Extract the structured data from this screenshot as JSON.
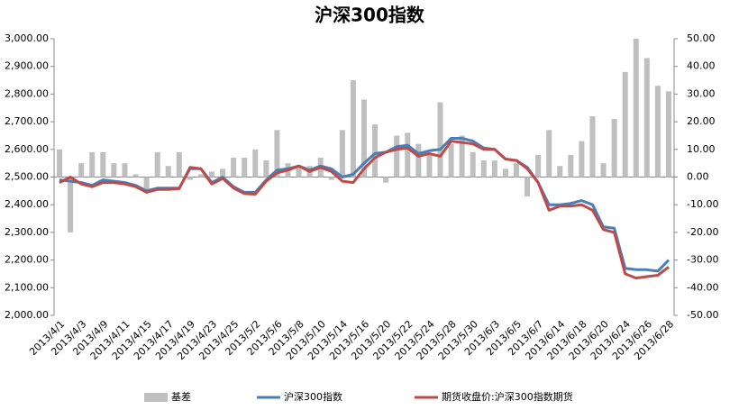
{
  "chart_data": {
    "type": "combo",
    "title": "沪深300指数",
    "categories": [
      "2013/4/1",
      null,
      "2013/4/3",
      null,
      "2013/4/9",
      null,
      "2013/4/11",
      null,
      "2013/4/15",
      null,
      "2013/4/17",
      null,
      "2013/4/19",
      null,
      "2013/4/23",
      null,
      "2013/4/25",
      null,
      "2013/5/2",
      null,
      "2013/5/6",
      null,
      "2013/5/8",
      null,
      "2013/5/10",
      null,
      "2013/5/14",
      null,
      "2013/5/16",
      null,
      "2013/5/20",
      null,
      "2013/5/22",
      null,
      "2013/5/24",
      null,
      "2013/5/28",
      null,
      "2013/5/30",
      null,
      "2013/6/3",
      null,
      "2013/6/5",
      null,
      "2013/6/7",
      null,
      "2013/6/14",
      null,
      "2013/6/18",
      null,
      "2013/6/20",
      null,
      "2013/6/24",
      null,
      "2013/6/26",
      null,
      "2013/6/28"
    ],
    "series": [
      {
        "name": "基差",
        "type": "bar",
        "axis": "y2",
        "color": "#bfbfbf",
        "values": [
          10,
          -20,
          5,
          9,
          9,
          5,
          5,
          1,
          -5,
          9,
          4,
          9,
          -1,
          1,
          2,
          3,
          7,
          7,
          10,
          6,
          17,
          5,
          4,
          4,
          7,
          -1,
          17,
          35,
          28,
          19,
          -2,
          15,
          16,
          12,
          8,
          27,
          12,
          15,
          9,
          6,
          6,
          3,
          5,
          -7,
          8,
          17,
          4,
          8,
          13,
          22,
          5,
          21,
          38,
          50,
          43,
          33,
          31
        ]
      },
      {
        "name": "沪深300指数",
        "type": "line",
        "color": "#4a7ebb",
        "values": [
          2490,
          2485,
          2480,
          2470,
          2490,
          2485,
          2480,
          2470,
          2450,
          2460,
          2460,
          2460,
          2530,
          2530,
          2480,
          2500,
          2465,
          2445,
          2445,
          2490,
          2525,
          2530,
          2540,
          2525,
          2540,
          2530,
          2500,
          2510,
          2550,
          2585,
          2590,
          2610,
          2615,
          2585,
          2595,
          2600,
          2640,
          2640,
          2630,
          2605,
          2600,
          2565,
          2560,
          2535,
          2480,
          2400,
          2400,
          2405,
          2415,
          2400,
          2320,
          2315,
          2170,
          2165,
          2165,
          2160,
          2200
        ]
      },
      {
        "name": "期货收盘价:沪深300指数期货",
        "type": "line",
        "color": "#be4b48",
        "values": [
          2480,
          2500,
          2475,
          2465,
          2480,
          2480,
          2475,
          2465,
          2445,
          2455,
          2455,
          2458,
          2535,
          2530,
          2475,
          2495,
          2460,
          2440,
          2438,
          2485,
          2515,
          2525,
          2540,
          2520,
          2535,
          2520,
          2485,
          2480,
          2530,
          2570,
          2590,
          2600,
          2605,
          2575,
          2585,
          2575,
          2630,
          2625,
          2620,
          2600,
          2600,
          2565,
          2560,
          2530,
          2480,
          2380,
          2395,
          2395,
          2400,
          2380,
          2310,
          2300,
          2150,
          2135,
          2140,
          2145,
          2175
        ]
      }
    ],
    "ylim": [
      2000,
      3000
    ],
    "yticks": [
      {
        "value": 2000,
        "label": "2,000.00"
      },
      {
        "value": 2100,
        "label": "2,100.00"
      },
      {
        "value": 2200,
        "label": "2,200.00"
      },
      {
        "value": 2300,
        "label": "2,300.00"
      },
      {
        "value": 2400,
        "label": "2,400.00"
      },
      {
        "value": 2500,
        "label": "2,500.00"
      },
      {
        "value": 2600,
        "label": "2,600.00"
      },
      {
        "value": 2700,
        "label": "2,700.00"
      },
      {
        "value": 2800,
        "label": "2,800.00"
      },
      {
        "value": 2900,
        "label": "2,900.00"
      },
      {
        "value": 3000,
        "label": "3,000.00"
      }
    ],
    "y2lim": [
      -50,
      50
    ],
    "y2ticks": [
      {
        "value": -50,
        "label": "-50.00"
      },
      {
        "value": -40,
        "label": "-40.00"
      },
      {
        "value": -30,
        "label": "-30.00"
      },
      {
        "value": -20,
        "label": "-20.00"
      },
      {
        "value": -10,
        "label": "-10.00"
      },
      {
        "value": 0,
        "label": "0.00"
      },
      {
        "value": 10,
        "label": "10.00"
      },
      {
        "value": 20,
        "label": "20.00"
      },
      {
        "value": 30,
        "label": "30.00"
      },
      {
        "value": 40,
        "label": "40.00"
      },
      {
        "value": 50,
        "label": "50.00"
      }
    ],
    "legend": "bottom"
  }
}
